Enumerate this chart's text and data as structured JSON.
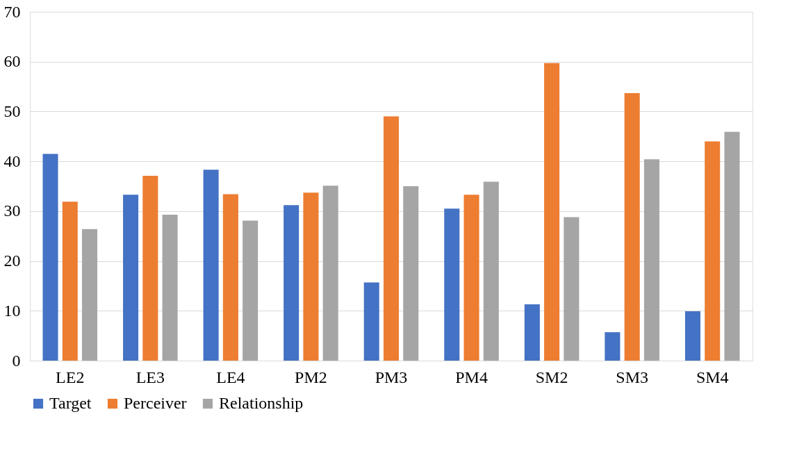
{
  "chart_data": {
    "type": "bar",
    "categories": [
      "LE2",
      "LE3",
      "LE4",
      "PM2",
      "PM3",
      "PM4",
      "SM2",
      "SM3",
      "SM4"
    ],
    "series": [
      {
        "name": "Target",
        "color": "#4472c4",
        "values": [
          41.5,
          33.3,
          38.3,
          31.2,
          15.7,
          30.5,
          11.3,
          5.7,
          9.9
        ]
      },
      {
        "name": "Perceiver",
        "color": "#ed7d31",
        "values": [
          31.9,
          37.1,
          33.4,
          33.7,
          49.0,
          33.3,
          59.7,
          53.7,
          44.0
        ]
      },
      {
        "name": "Relationship",
        "color": "#a5a5a5",
        "values": [
          26.4,
          29.3,
          28.1,
          35.1,
          35.0,
          35.9,
          28.8,
          40.4,
          45.9
        ]
      }
    ],
    "ylim": [
      0,
      70
    ],
    "yticks": [
      0,
      10,
      20,
      30,
      40,
      50,
      60,
      70
    ],
    "grid": "y",
    "legend": "bottom"
  }
}
